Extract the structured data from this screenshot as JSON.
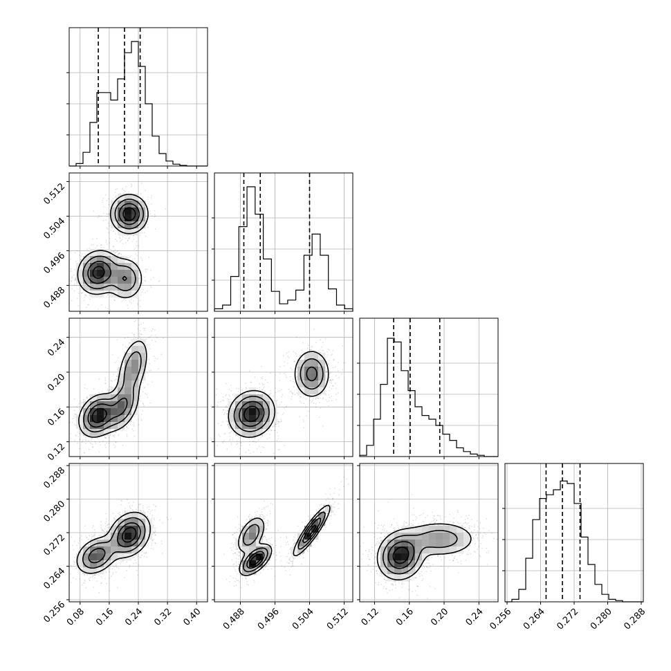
{
  "chart_data": {
    "type": "corner",
    "quantiles": [
      0.16,
      0.5,
      0.84
    ],
    "grid": true,
    "axes": [
      {
        "range": [
          0.05,
          0.43
        ],
        "ticks": [
          0.08,
          0.16,
          0.24,
          0.32,
          0.4
        ],
        "tick_labels": [
          "0.08",
          "0.16",
          "0.24",
          "0.32",
          "0.40"
        ],
        "quantile_values": [
          0.13,
          0.202,
          0.245
        ],
        "histogram": [
          0.0,
          0.02,
          0.11,
          0.35,
          0.59,
          0.59,
          0.53,
          0.7,
          0.91,
          1.0,
          0.8,
          0.5,
          0.24,
          0.1,
          0.04,
          0.015,
          0.005,
          0.0,
          0.0,
          0.0
        ]
      },
      {
        "range": [
          0.482,
          0.514
        ],
        "ticks": [
          0.488,
          0.496,
          0.504,
          0.512
        ],
        "tick_labels": [
          "0.488",
          "0.496",
          "0.504",
          "0.512"
        ],
        "quantile_values": [
          0.4888,
          0.4926,
          0.504
        ],
        "histogram": [
          0.02,
          0.05,
          0.28,
          0.68,
          1.0,
          0.78,
          0.42,
          0.16,
          0.06,
          0.09,
          0.17,
          0.45,
          0.62,
          0.45,
          0.18,
          0.05,
          0.02
        ]
      },
      {
        "range": [
          0.103,
          0.262
        ],
        "ticks": [
          0.12,
          0.16,
          0.2,
          0.24
        ],
        "tick_labels": [
          "0.12",
          "0.16",
          "0.20",
          "0.24"
        ],
        "quantile_values": [
          0.142,
          0.161,
          0.195
        ],
        "histogram": [
          0.01,
          0.09,
          0.3,
          0.58,
          0.95,
          0.92,
          0.69,
          0.53,
          0.4,
          0.33,
          0.3,
          0.25,
          0.18,
          0.13,
          0.07,
          0.04,
          0.02,
          0.01,
          0.0,
          0.0
        ]
      },
      {
        "range": [
          0.2555,
          0.2885
        ],
        "ticks": [
          0.256,
          0.264,
          0.272,
          0.28,
          0.288
        ],
        "tick_labels": [
          "0.256",
          "0.264",
          "0.272",
          "0.280",
          "0.288"
        ],
        "quantile_values": [
          0.2653,
          0.2692,
          0.2734
        ],
        "histogram": [
          0.0,
          0.02,
          0.1,
          0.35,
          0.66,
          0.83,
          0.86,
          0.9,
          0.97,
          0.95,
          0.79,
          0.52,
          0.3,
          0.14,
          0.06,
          0.02,
          0.01,
          0.0,
          0.0,
          0.0
        ]
      }
    ],
    "panels_2d": [
      {
        "x": 0,
        "y": 1,
        "modes": [
          {
            "center": [
              0.13,
              0.491
            ],
            "sigma": [
              0.028,
              0.0025
            ],
            "rho": 0.1,
            "weight": 0.42
          },
          {
            "center": [
              0.205,
              0.4895
            ],
            "sigma": [
              0.025,
              0.0025
            ],
            "rho": 0.0,
            "weight": 0.22
          },
          {
            "center": [
              0.215,
              0.5045
            ],
            "sigma": [
              0.025,
              0.0022
            ],
            "rho": 0.0,
            "weight": 0.36
          }
        ]
      },
      {
        "x": 0,
        "y": 2,
        "modes": [
          {
            "center": [
              0.13,
              0.15
            ],
            "sigma": [
              0.026,
              0.012
            ],
            "rho": 0.25,
            "weight": 0.45
          },
          {
            "center": [
              0.195,
              0.16
            ],
            "sigma": [
              0.024,
              0.014
            ],
            "rho": 0.4,
            "weight": 0.28
          },
          {
            "center": [
              0.225,
              0.205
            ],
            "sigma": [
              0.022,
              0.018
            ],
            "rho": 0.45,
            "weight": 0.27
          }
        ]
      },
      {
        "x": 0,
        "y": 3,
        "modes": [
          {
            "center": [
              0.125,
              0.2665
            ],
            "sigma": [
              0.028,
              0.0022
            ],
            "rho": 0.3,
            "weight": 0.38
          },
          {
            "center": [
              0.215,
              0.2715
            ],
            "sigma": [
              0.028,
              0.0026
            ],
            "rho": 0.25,
            "weight": 0.62
          }
        ]
      },
      {
        "x": 1,
        "y": 2,
        "modes": [
          {
            "center": [
              0.4906,
              0.152
            ],
            "sigma": [
              0.0026,
              0.013
            ],
            "rho": 0.1,
            "weight": 0.64
          },
          {
            "center": [
              0.5045,
              0.198
            ],
            "sigma": [
              0.0021,
              0.014
            ],
            "rho": 0.0,
            "weight": 0.36
          }
        ]
      },
      {
        "x": 1,
        "y": 3,
        "modes": [
          {
            "center": [
              0.4905,
              0.2715
            ],
            "sigma": [
              0.0017,
              0.0023
            ],
            "rho": 0.5,
            "weight": 0.26
          },
          {
            "center": [
              0.4915,
              0.2655
            ],
            "sigma": [
              0.0018,
              0.0018
            ],
            "rho": 0.6,
            "weight": 0.38
          },
          {
            "center": [
              0.5045,
              0.2725
            ],
            "sigma": [
              0.0021,
              0.003
            ],
            "rho": 0.9,
            "weight": 0.36
          }
        ]
      },
      {
        "x": 2,
        "y": 3,
        "modes": [
          {
            "center": [
              0.15,
              0.2665
            ],
            "sigma": [
              0.013,
              0.0028
            ],
            "rho": 0.1,
            "weight": 0.62
          },
          {
            "center": [
              0.195,
              0.2705
            ],
            "sigma": [
              0.022,
              0.0022
            ],
            "rho": 0.0,
            "weight": 0.38
          }
        ]
      }
    ]
  }
}
